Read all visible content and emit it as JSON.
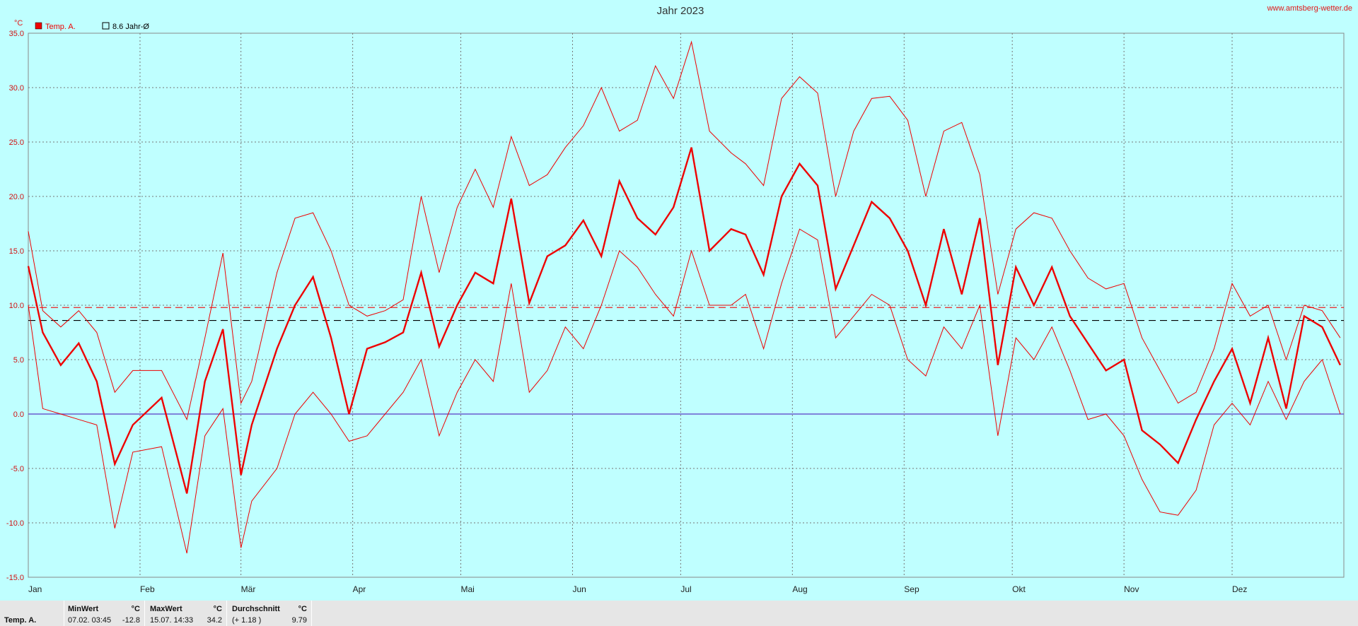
{
  "site": "www.amtsberg-wetter.de",
  "chart_data": {
    "type": "line",
    "title": "Jahr 2023",
    "unit": "°C",
    "ylim": [
      -15,
      35
    ],
    "yticks": [
      "35.0",
      "30.0",
      "25.0",
      "20.0",
      "15.0",
      "10.0",
      "5.0",
      "0.0",
      "-5.0",
      "-10.0",
      "-15.0"
    ],
    "months": [
      "Jan",
      "Feb",
      "Mär",
      "Apr",
      "Mai",
      "Jun",
      "Jul",
      "Aug",
      "Sep",
      "Okt",
      "Nov",
      "Dez"
    ],
    "legend": [
      {
        "label": "Temp. A.",
        "color": "#ee0000"
      },
      {
        "label": "8.6 Jahr-Ø",
        "color": "#000000"
      }
    ],
    "reference_lines": {
      "year_avg_longterm": 8.6,
      "year_avg_current": 9.79,
      "zero": 0
    },
    "grid": true,
    "series": [
      {
        "name": "Temp. A.",
        "color": "#ee0000",
        "x_day": [
          1,
          5,
          10,
          15,
          20,
          25,
          30,
          38,
          45,
          50,
          55,
          60,
          63,
          70,
          75,
          80,
          85,
          90,
          95,
          100,
          105,
          110,
          115,
          120,
          125,
          130,
          135,
          140,
          145,
          150,
          155,
          160,
          165,
          170,
          175,
          180,
          185,
          190,
          196,
          200,
          205,
          210,
          215,
          220,
          225,
          230,
          235,
          240,
          245,
          250,
          255,
          260,
          265,
          270,
          275,
          280,
          285,
          290,
          295,
          300,
          305,
          310,
          315,
          320,
          325,
          330,
          335,
          340,
          345,
          350,
          355,
          360,
          365
        ],
        "mean": [
          13.6,
          7.5,
          4.5,
          6.5,
          3.0,
          -4.6,
          -1.0,
          1.5,
          -7.3,
          3.0,
          7.8,
          -5.6,
          -1.0,
          6.0,
          10.0,
          12.6,
          7.0,
          0.0,
          6.0,
          6.6,
          7.5,
          13.0,
          6.2,
          10.0,
          13.0,
          12.0,
          19.8,
          10.2,
          14.5,
          15.5,
          17.8,
          14.5,
          21.4,
          18.0,
          16.5,
          19.0,
          24.5,
          15.0,
          17.0,
          16.5,
          12.8,
          20.0,
          23.0,
          21.0,
          11.5,
          15.5,
          19.5,
          18.0,
          15.0,
          10.0,
          17.0,
          11.0,
          18.0,
          4.5,
          13.5,
          10.0,
          13.5,
          9.0,
          6.5,
          4.0,
          5.0,
          -1.5,
          -2.8,
          -4.5,
          -0.5,
          3.0,
          6.0,
          1.0,
          7.0,
          0.5,
          9.0,
          8.0,
          4.5
        ],
        "max": [
          16.8,
          9.5,
          8.0,
          9.5,
          7.5,
          2.0,
          4.0,
          4.0,
          -0.5,
          7.0,
          14.8,
          1.0,
          3.0,
          13.0,
          18.0,
          18.5,
          15.0,
          10.0,
          9.0,
          9.5,
          10.5,
          20.0,
          13.0,
          19.0,
          22.5,
          19.0,
          25.5,
          21.0,
          22.0,
          24.5,
          26.5,
          30.0,
          26.0,
          27.0,
          32.0,
          29.0,
          34.2,
          26.0,
          24.0,
          23.0,
          21.0,
          29.0,
          31.0,
          29.5,
          20.0,
          26.0,
          29.0,
          29.2,
          27.0,
          20.0,
          26.0,
          26.8,
          22.0,
          11.0,
          17.0,
          18.5,
          18.0,
          15.0,
          12.5,
          11.5,
          12.0,
          7.0,
          4.0,
          1.0,
          2.0,
          6.0,
          12.0,
          9.0,
          10.0,
          5.0,
          10.0,
          9.5,
          7.0
        ],
        "min": [
          10.0,
          0.5,
          0.0,
          -0.5,
          -1.0,
          -10.5,
          -3.5,
          -3.0,
          -12.8,
          -2.0,
          0.5,
          -12.3,
          -8.0,
          -5.0,
          0.0,
          2.0,
          0.0,
          -2.5,
          -2.0,
          0.0,
          2.0,
          5.0,
          -2.0,
          2.0,
          5.0,
          3.0,
          12.0,
          2.0,
          4.0,
          8.0,
          6.0,
          10.0,
          15.0,
          13.5,
          11.0,
          9.0,
          15.0,
          10.0,
          10.0,
          11.0,
          6.0,
          12.0,
          17.0,
          16.0,
          7.0,
          9.0,
          11.0,
          10.0,
          5.0,
          3.5,
          8.0,
          6.0,
          10.0,
          -2.0,
          7.0,
          5.0,
          8.0,
          4.0,
          -0.5,
          0.0,
          -2.0,
          -6.0,
          -9.0,
          -9.3,
          -7.0,
          -1.0,
          1.0,
          -1.0,
          3.0,
          -0.5,
          3.0,
          5.0,
          0.0
        ]
      }
    ]
  },
  "stats": {
    "row_label": "Temp. A.",
    "min": {
      "header": "MinWert",
      "unit": "°C",
      "datetime": "07.02.  03:45",
      "value": "-12.8"
    },
    "max": {
      "header": "MaxWert",
      "unit": "°C",
      "datetime": "15.07.  14:33",
      "value": "34.2"
    },
    "avg": {
      "header": "Durchschnitt",
      "unit": "°C",
      "delta": "(+ 1.18 )",
      "value": "9.79"
    }
  }
}
